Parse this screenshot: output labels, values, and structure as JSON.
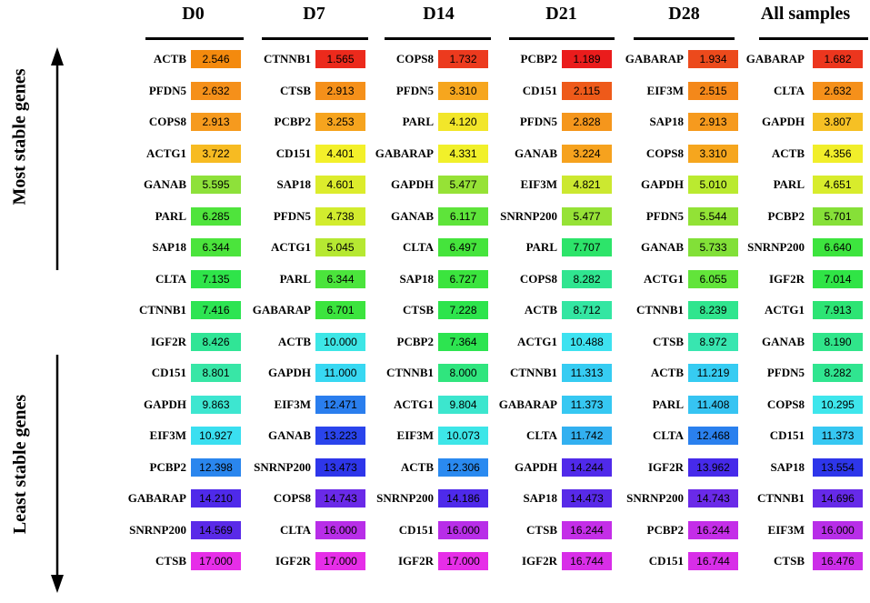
{
  "chart_data": {
    "type": "table",
    "side_labels": {
      "top": "Most stable genes",
      "bottom": "Least stable genes"
    },
    "columns": [
      {
        "header": "D0",
        "rows": [
          {
            "gene": "ACTB",
            "value": "2.546",
            "color": "#f48a0e"
          },
          {
            "gene": "PFDN5",
            "value": "2.632",
            "color": "#f5901a"
          },
          {
            "gene": "COPS8",
            "value": "2.913",
            "color": "#f69a1e"
          },
          {
            "gene": "ACTG1",
            "value": "3.722",
            "color": "#f7bb22"
          },
          {
            "gene": "GANAB",
            "value": "5.595",
            "color": "#8ee13a"
          },
          {
            "gene": "PARL",
            "value": "6.285",
            "color": "#4fe43c"
          },
          {
            "gene": "SAP18",
            "value": "6.344",
            "color": "#4be43c"
          },
          {
            "gene": "CLTA",
            "value": "7.135",
            "color": "#2fe44a"
          },
          {
            "gene": "CTNNB1",
            "value": "7.416",
            "color": "#2de452"
          },
          {
            "gene": "IGF2R",
            "value": "8.426",
            "color": "#30e596"
          },
          {
            "gene": "CD151",
            "value": "8.801",
            "color": "#38e6a6"
          },
          {
            "gene": "GAPDH",
            "value": "9.863",
            "color": "#3de6d0"
          },
          {
            "gene": "EIF3M",
            "value": "10.927",
            "color": "#3adff0"
          },
          {
            "gene": "PCBP2",
            "value": "12.398",
            "color": "#2a86ee"
          },
          {
            "gene": "GABARAP",
            "value": "14.210",
            "color": "#4f2aea"
          },
          {
            "gene": "SNRNP200",
            "value": "14.569",
            "color": "#5a2ae8"
          },
          {
            "gene": "CTSB",
            "value": "17.000",
            "color": "#e62ee8"
          }
        ]
      },
      {
        "header": "D7",
        "rows": [
          {
            "gene": "CTNNB1",
            "value": "1.565",
            "color": "#ec2a1c"
          },
          {
            "gene": "CTSB",
            "value": "2.913",
            "color": "#f5901a"
          },
          {
            "gene": "PCBP2",
            "value": "3.253",
            "color": "#f6a41e"
          },
          {
            "gene": "CD151",
            "value": "4.401",
            "color": "#f3f02a"
          },
          {
            "gene": "SAP18",
            "value": "4.601",
            "color": "#dcec2c"
          },
          {
            "gene": "PFDN5",
            "value": "4.738",
            "color": "#d2ec2e"
          },
          {
            "gene": "ACTG1",
            "value": "5.045",
            "color": "#b6e832"
          },
          {
            "gene": "PARL",
            "value": "6.344",
            "color": "#4be43c"
          },
          {
            "gene": "GABARAP",
            "value": "6.701",
            "color": "#3ce43e"
          },
          {
            "gene": "ACTB",
            "value": "10.000",
            "color": "#3de6e6"
          },
          {
            "gene": "GAPDH",
            "value": "11.000",
            "color": "#38d8f2"
          },
          {
            "gene": "EIF3M",
            "value": "12.471",
            "color": "#2a7eee"
          },
          {
            "gene": "GANAB",
            "value": "13.223",
            "color": "#2a44ec"
          },
          {
            "gene": "SNRNP200",
            "value": "13.473",
            "color": "#2e36ea"
          },
          {
            "gene": "COPS8",
            "value": "14.743",
            "color": "#6a2ae8"
          },
          {
            "gene": "CLTA",
            "value": "16.000",
            "color": "#b82ee8"
          },
          {
            "gene": "IGF2R",
            "value": "17.000",
            "color": "#e62ee8"
          }
        ]
      },
      {
        "header": "D14",
        "rows": [
          {
            "gene": "COPS8",
            "value": "1.732",
            "color": "#ec3a1e"
          },
          {
            "gene": "PFDN5",
            "value": "3.310",
            "color": "#f6a61e"
          },
          {
            "gene": "PARL",
            "value": "4.120",
            "color": "#f2e62a"
          },
          {
            "gene": "GABARAP",
            "value": "4.331",
            "color": "#f1f02a"
          },
          {
            "gene": "GAPDH",
            "value": "5.477",
            "color": "#96e236"
          },
          {
            "gene": "GANAB",
            "value": "6.117",
            "color": "#5ee43a"
          },
          {
            "gene": "CLTA",
            "value": "6.497",
            "color": "#45e43c"
          },
          {
            "gene": "SAP18",
            "value": "6.727",
            "color": "#3be43e"
          },
          {
            "gene": "CTSB",
            "value": "7.228",
            "color": "#2de44c"
          },
          {
            "gene": "PCBP2",
            "value": "7.364",
            "color": "#2de450"
          },
          {
            "gene": "CTNNB1",
            "value": "8.000",
            "color": "#30e57e"
          },
          {
            "gene": "ACTG1",
            "value": "9.804",
            "color": "#3ce6ce"
          },
          {
            "gene": "EIF3M",
            "value": "10.073",
            "color": "#3de6e8"
          },
          {
            "gene": "ACTB",
            "value": "12.306",
            "color": "#2a8af0"
          },
          {
            "gene": "SNRNP200",
            "value": "14.186",
            "color": "#4e2aea"
          },
          {
            "gene": "CD151",
            "value": "16.000",
            "color": "#b82ee8"
          },
          {
            "gene": "IGF2R",
            "value": "17.000",
            "color": "#e62ee8"
          }
        ]
      },
      {
        "header": "D21",
        "rows": [
          {
            "gene": "PCBP2",
            "value": "1.189",
            "color": "#ea1c1c"
          },
          {
            "gene": "CD151",
            "value": "2.115",
            "color": "#ee5a1a"
          },
          {
            "gene": "PFDN5",
            "value": "2.828",
            "color": "#f5961c"
          },
          {
            "gene": "GANAB",
            "value": "3.224",
            "color": "#f6a21e"
          },
          {
            "gene": "EIF3M",
            "value": "4.821",
            "color": "#cce830"
          },
          {
            "gene": "SNRNP200",
            "value": "5.477",
            "color": "#96e236"
          },
          {
            "gene": "PARL",
            "value": "7.707",
            "color": "#2de46a"
          },
          {
            "gene": "COPS8",
            "value": "8.282",
            "color": "#30e590"
          },
          {
            "gene": "ACTB",
            "value": "8.712",
            "color": "#34e6a2"
          },
          {
            "gene": "ACTG1",
            "value": "10.488",
            "color": "#3ee2f0"
          },
          {
            "gene": "CTNNB1",
            "value": "11.313",
            "color": "#36ccf2"
          },
          {
            "gene": "GABARAP",
            "value": "11.373",
            "color": "#36c8f2"
          },
          {
            "gene": "CLTA",
            "value": "11.742",
            "color": "#32b0f0"
          },
          {
            "gene": "GAPDH",
            "value": "14.244",
            "color": "#502aea"
          },
          {
            "gene": "SAP18",
            "value": "14.473",
            "color": "#582ae8"
          },
          {
            "gene": "CTSB",
            "value": "16.244",
            "color": "#c42ee8"
          },
          {
            "gene": "IGF2R",
            "value": "16.744",
            "color": "#d82ee8"
          }
        ]
      },
      {
        "header": "D28",
        "rows": [
          {
            "gene": "GABARAP",
            "value": "1.934",
            "color": "#ec4a1c"
          },
          {
            "gene": "EIF3M",
            "value": "2.515",
            "color": "#f4881a"
          },
          {
            "gene": "SAP18",
            "value": "2.913",
            "color": "#f69a1e"
          },
          {
            "gene": "COPS8",
            "value": "3.310",
            "color": "#f6a61e"
          },
          {
            "gene": "GAPDH",
            "value": "5.010",
            "color": "#baea30"
          },
          {
            "gene": "PFDN5",
            "value": "5.544",
            "color": "#92e236"
          },
          {
            "gene": "GANAB",
            "value": "5.733",
            "color": "#82e038"
          },
          {
            "gene": "ACTG1",
            "value": "6.055",
            "color": "#62e43a"
          },
          {
            "gene": "CTNNB1",
            "value": "8.239",
            "color": "#30e58e"
          },
          {
            "gene": "CTSB",
            "value": "8.972",
            "color": "#38e6b0"
          },
          {
            "gene": "ACTB",
            "value": "11.219",
            "color": "#36ccf2"
          },
          {
            "gene": "PARL",
            "value": "11.408",
            "color": "#36c4f2"
          },
          {
            "gene": "CLTA",
            "value": "12.468",
            "color": "#2a80ee"
          },
          {
            "gene": "IGF2R",
            "value": "13.962",
            "color": "#462aea"
          },
          {
            "gene": "SNRNP200",
            "value": "14.743",
            "color": "#6a2ae8"
          },
          {
            "gene": "PCBP2",
            "value": "16.244",
            "color": "#c42ee8"
          },
          {
            "gene": "CD151",
            "value": "16.744",
            "color": "#d82ee8"
          }
        ]
      },
      {
        "header": "All samples",
        "rows": [
          {
            "gene": "GABARAP",
            "value": "1.682",
            "color": "#ec361e"
          },
          {
            "gene": "CLTA",
            "value": "2.632",
            "color": "#f5901a"
          },
          {
            "gene": "GAPDH",
            "value": "3.807",
            "color": "#f6c024"
          },
          {
            "gene": "ACTB",
            "value": "4.356",
            "color": "#f1ee2a"
          },
          {
            "gene": "PARL",
            "value": "4.651",
            "color": "#d8ec2c"
          },
          {
            "gene": "PCBP2",
            "value": "5.701",
            "color": "#86e038"
          },
          {
            "gene": "SNRNP200",
            "value": "6.640",
            "color": "#3de43e"
          },
          {
            "gene": "IGF2R",
            "value": "7.014",
            "color": "#30e446"
          },
          {
            "gene": "ACTG1",
            "value": "7.913",
            "color": "#2de474"
          },
          {
            "gene": "GANAB",
            "value": "8.190",
            "color": "#30e58a"
          },
          {
            "gene": "PFDN5",
            "value": "8.282",
            "color": "#30e590"
          },
          {
            "gene": "COPS8",
            "value": "10.295",
            "color": "#3ee6ec"
          },
          {
            "gene": "CD151",
            "value": "11.373",
            "color": "#36c8f2"
          },
          {
            "gene": "SAP18",
            "value": "13.554",
            "color": "#2e36ea"
          },
          {
            "gene": "CTNNB1",
            "value": "14.696",
            "color": "#662ae8"
          },
          {
            "gene": "EIF3M",
            "value": "16.000",
            "color": "#b82ee8"
          },
          {
            "gene": "CTSB",
            "value": "16.476",
            "color": "#cc2ee8"
          }
        ]
      }
    ]
  }
}
